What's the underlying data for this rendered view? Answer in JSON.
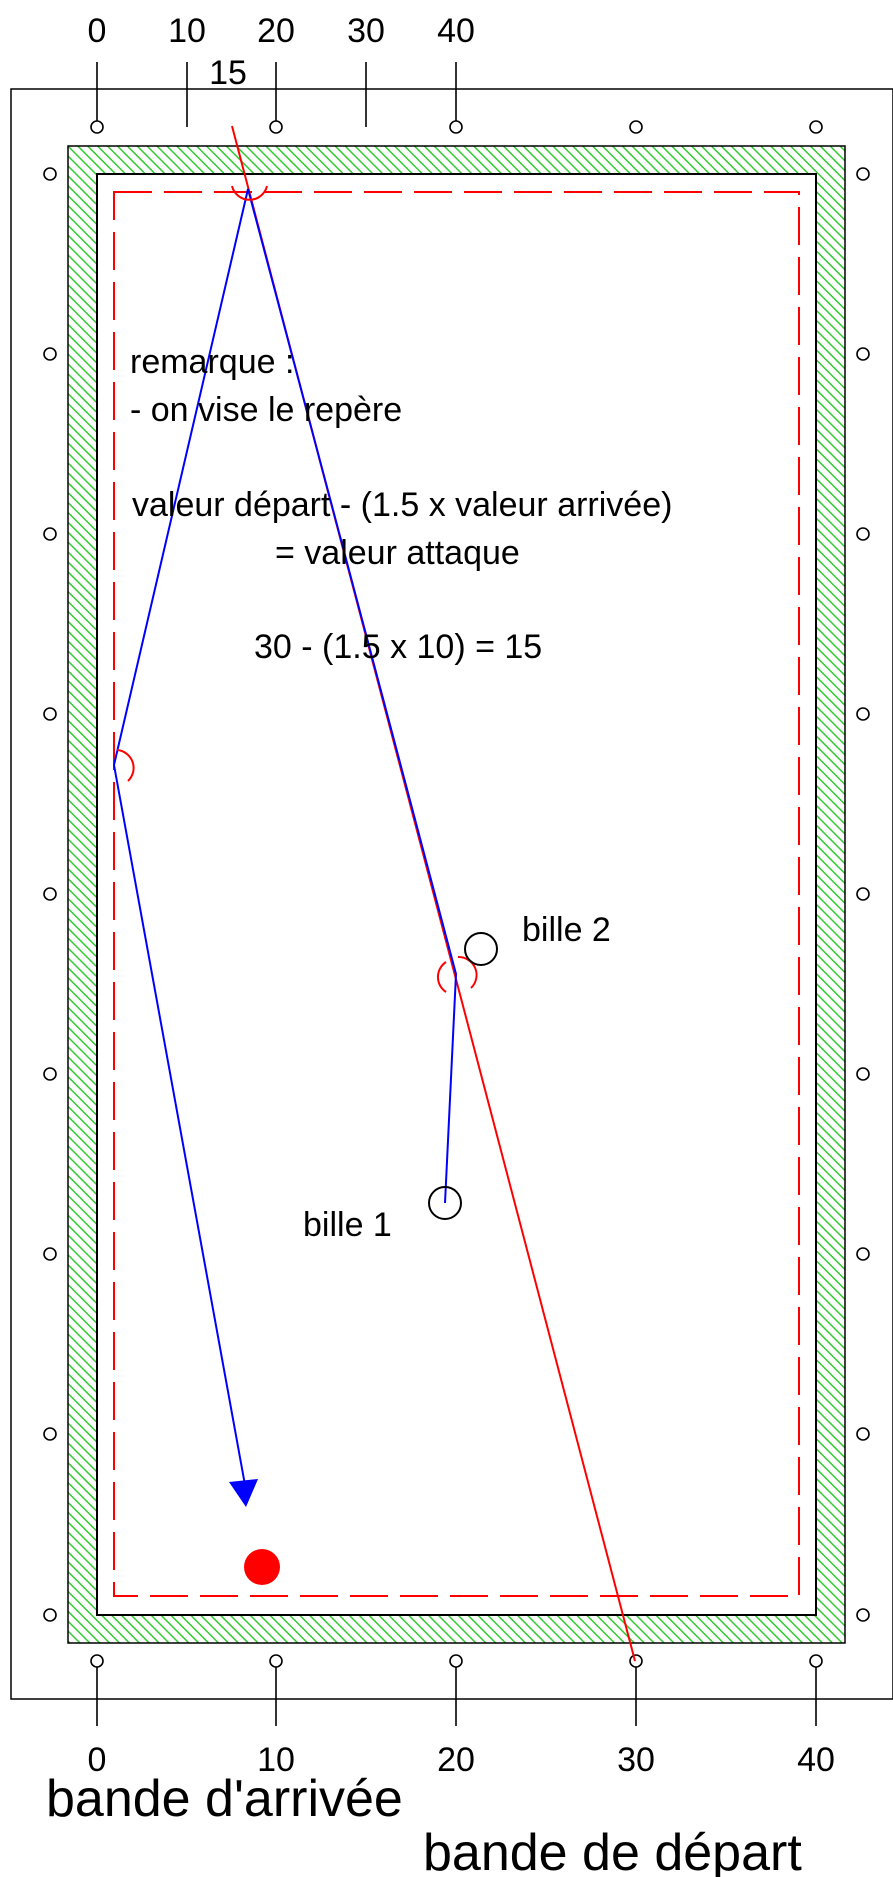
{
  "top_scale": {
    "labels": [
      "0",
      "10",
      "20",
      "30",
      "40"
    ],
    "aim_label": "15"
  },
  "bottom_scale": {
    "labels": [
      "0",
      "10",
      "20",
      "30",
      "40"
    ]
  },
  "remark": {
    "title": "remarque :",
    "line1": "- on vise le repère",
    "formula1": "valeur départ - (1.5 x valeur arrivée)",
    "formula2": "= valeur attaque",
    "example": "30 - (1.5 x 10) = 15"
  },
  "balls": {
    "ball1": "bille 1",
    "ball2": "bille 2"
  },
  "bands": {
    "arrival": "bande d'arrivée",
    "departure": "bande de départ"
  },
  "colors": {
    "cushion_hatch": "#33cc33",
    "cue_path": "#0000ff",
    "reference_line": "#ff0000",
    "target_ball": "#ff0000",
    "outline": "#000000"
  }
}
